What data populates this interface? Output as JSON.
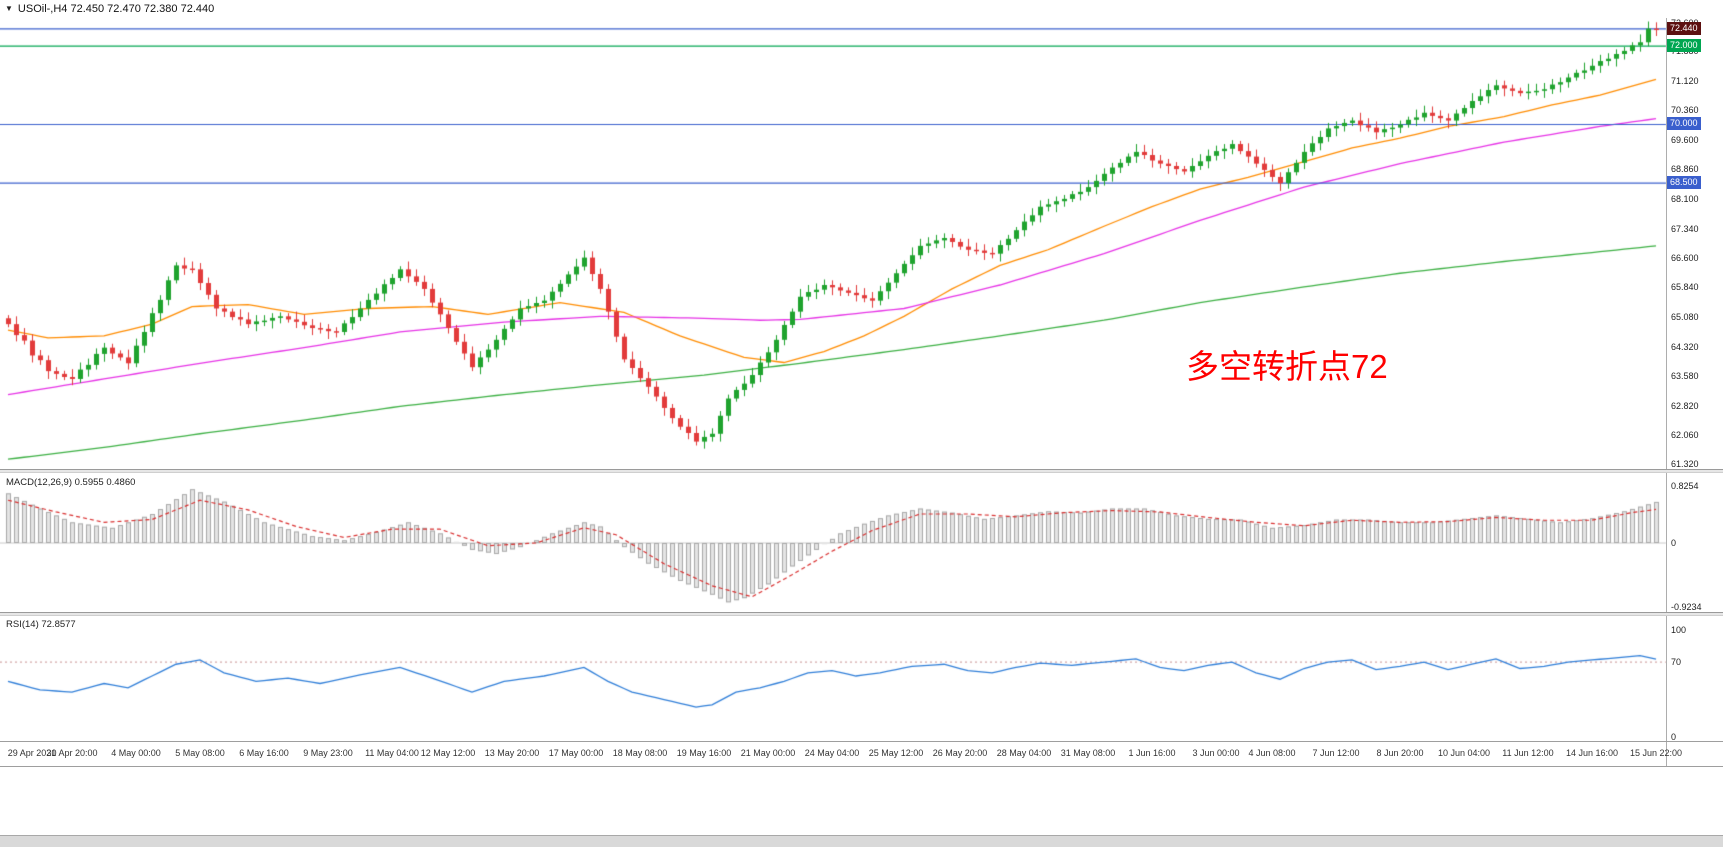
{
  "header": {
    "dropdown_icon": "▼",
    "title": "USOil-,H4  72.450 72.470 72.380 72.440"
  },
  "annotation": {
    "text": "多空转折点72",
    "color": "#ff0000"
  },
  "price_axis": {
    "labels": [
      "72.600",
      "71.880",
      "71.120",
      "70.360",
      "69.600",
      "68.860",
      "68.100",
      "67.340",
      "66.600",
      "65.840",
      "65.080",
      "64.320",
      "63.580",
      "62.820",
      "62.060",
      "61.320"
    ],
    "tags": [
      {
        "text": "72.440",
        "price": 72.44,
        "bg": "#5c1010"
      },
      {
        "text": "72.000",
        "price": 72.0,
        "bg": "#00a651"
      },
      {
        "text": "70.000",
        "price": 70.0,
        "bg": "#3a5fcd"
      },
      {
        "text": "68.500",
        "price": 68.5,
        "bg": "#3a5fcd"
      }
    ]
  },
  "hlines": [
    {
      "price": 72.44,
      "color": "#3a5fcd"
    },
    {
      "price": 72.0,
      "color": "#00a651"
    },
    {
      "price": 70.0,
      "color": "#3a5fcd"
    },
    {
      "price": 68.5,
      "color": "#3a5fcd"
    }
  ],
  "time_axis": [
    "29 Apr 2021",
    "30 Apr 20:00",
    "4 May 00:00",
    "5 May 08:00",
    "6 May 16:00",
    "9 May 23:00",
    "11 May 04:00",
    "12 May 12:00",
    "13 May 20:00",
    "17 May 00:00",
    "18 May 08:00",
    "19 May 16:00",
    "21 May 00:00",
    "24 May 04:00",
    "25 May 12:00",
    "26 May 20:00",
    "28 May 04:00",
    "31 May 08:00",
    "1 Jun 16:00",
    "3 Jun 00:00",
    "4 Jun 08:00",
    "7 Jun 12:00",
    "8 Jun 20:00",
    "10 Jun 04:00",
    "11 Jun 12:00",
    "14 Jun 16:00",
    "15 Jun 22:00"
  ],
  "chart_data": [
    {
      "type": "candlestick",
      "symbol": "USOil-",
      "timeframe": "H4",
      "y_range": [
        61.2,
        72.72
      ],
      "x_range": [
        "29 Apr 2021",
        "15 Jun 2021 22:00"
      ],
      "up_color": "#1fa32e",
      "down_color": "#e23b3b",
      "first_open": 65.05,
      "closes": [
        64.9,
        64.62,
        64.48,
        64.1,
        63.98,
        63.7,
        63.63,
        63.55,
        63.5,
        63.74,
        63.86,
        64.14,
        64.3,
        64.15,
        64.05,
        63.9,
        64.35,
        64.7,
        65.18,
        65.52,
        66.02,
        66.4,
        66.32,
        66.3,
        65.95,
        65.65,
        65.3,
        65.22,
        65.08,
        65.02,
        64.9,
        64.97,
        64.99,
        65.06,
        65.1,
        65.02,
        64.96,
        64.87,
        64.8,
        64.78,
        64.72,
        64.7,
        64.92,
        65.08,
        65.3,
        65.52,
        65.68,
        65.92,
        66.08,
        66.3,
        66.12,
        65.98,
        65.8,
        65.45,
        65.15,
        64.8,
        64.45,
        64.15,
        63.8,
        64.05,
        64.25,
        64.5,
        64.78,
        65.02,
        65.3,
        65.36,
        65.44,
        65.5,
        65.73,
        65.93,
        66.17,
        66.37,
        66.6,
        66.18,
        65.8,
        65.22,
        64.58,
        64.0,
        63.78,
        63.52,
        63.3,
        63.05,
        62.76,
        62.5,
        62.28,
        62.12,
        61.9,
        62.02,
        62.1,
        62.56,
        63.0,
        63.22,
        63.38,
        63.6,
        63.92,
        64.18,
        64.5,
        64.88,
        65.22,
        65.6,
        65.72,
        65.78,
        65.9,
        65.84,
        65.76,
        65.7,
        65.64,
        65.56,
        65.5,
        65.74,
        65.96,
        66.2,
        66.44,
        66.66,
        66.9,
        66.96,
        67.04,
        67.1,
        67.0,
        66.88,
        66.8,
        66.78,
        66.72,
        66.7,
        66.92,
        67.08,
        67.3,
        67.52,
        67.68,
        67.9,
        67.96,
        68.04,
        68.1,
        68.22,
        68.28,
        68.4,
        68.56,
        68.74,
        68.9,
        69.02,
        69.18,
        69.3,
        69.22,
        69.08,
        69.0,
        68.94,
        68.86,
        68.8,
        68.94,
        69.06,
        69.2,
        69.32,
        69.38,
        69.5,
        69.32,
        69.18,
        69.0,
        68.84,
        68.66,
        68.5,
        68.78,
        69.02,
        69.3,
        69.52,
        69.68,
        69.9,
        69.96,
        70.04,
        70.1,
        69.98,
        69.92,
        69.8,
        69.88,
        69.92,
        70.0,
        70.12,
        70.18,
        70.3,
        70.22,
        70.16,
        70.1,
        70.28,
        70.42,
        70.6,
        70.72,
        70.88,
        71.0,
        70.92,
        70.86,
        70.8,
        70.84,
        70.86,
        70.9,
        71.02,
        71.08,
        71.2,
        71.32,
        71.38,
        71.5,
        71.62,
        71.68,
        71.8,
        71.88,
        72.02,
        72.1,
        72.45,
        72.44
      ],
      "overlays": [
        {
          "name": "ma-fast-orange",
          "color": "#ff8c00",
          "points": [
            [
              0,
              64.75
            ],
            [
              5,
              64.55
            ],
            [
              12,
              64.6
            ],
            [
              18,
              64.9
            ],
            [
              23,
              65.35
            ],
            [
              30,
              65.4
            ],
            [
              37,
              65.15
            ],
            [
              45,
              65.3
            ],
            [
              53,
              65.35
            ],
            [
              60,
              65.15
            ],
            [
              69,
              65.45
            ],
            [
              77,
              65.2
            ],
            [
              84,
              64.6
            ],
            [
              92,
              64.05
            ],
            [
              97,
              63.92
            ],
            [
              102,
              64.2
            ],
            [
              107,
              64.6
            ],
            [
              112,
              65.1
            ],
            [
              118,
              65.8
            ],
            [
              124,
              66.4
            ],
            [
              130,
              66.8
            ],
            [
              137,
              67.4
            ],
            [
              143,
              67.9
            ],
            [
              149,
              68.35
            ],
            [
              155,
              68.65
            ],
            [
              162,
              69.05
            ],
            [
              168,
              69.4
            ],
            [
              174,
              69.65
            ],
            [
              180,
              69.95
            ],
            [
              187,
              70.2
            ],
            [
              193,
              70.5
            ],
            [
              199,
              70.75
            ],
            [
              206,
              71.15
            ]
          ]
        },
        {
          "name": "ma-mid-magenta",
          "color": "#e632e6",
          "points": [
            [
              0,
              63.1
            ],
            [
              12,
              63.5
            ],
            [
              24,
              63.9
            ],
            [
              37,
              64.3
            ],
            [
              49,
              64.7
            ],
            [
              62,
              64.95
            ],
            [
              74,
              65.1
            ],
            [
              87,
              65.05
            ],
            [
              94,
              65.0
            ],
            [
              99,
              65.02
            ],
            [
              112,
              65.3
            ],
            [
              124,
              65.9
            ],
            [
              137,
              66.7
            ],
            [
              149,
              67.55
            ],
            [
              162,
              68.4
            ],
            [
              174,
              69.0
            ],
            [
              187,
              69.55
            ],
            [
              199,
              69.95
            ],
            [
              206,
              70.15
            ]
          ]
        },
        {
          "name": "ma-slow-green",
          "color": "#3cb043",
          "points": [
            [
              0,
              61.45
            ],
            [
              12,
              61.75
            ],
            [
              24,
              62.1
            ],
            [
              37,
              62.45
            ],
            [
              49,
              62.8
            ],
            [
              62,
              63.1
            ],
            [
              74,
              63.35
            ],
            [
              87,
              63.6
            ],
            [
              99,
              63.9
            ],
            [
              112,
              64.25
            ],
            [
              124,
              64.6
            ],
            [
              137,
              65.0
            ],
            [
              149,
              65.45
            ],
            [
              162,
              65.85
            ],
            [
              174,
              66.2
            ],
            [
              187,
              66.5
            ],
            [
              199,
              66.75
            ],
            [
              206,
              66.9
            ]
          ]
        }
      ]
    },
    {
      "type": "macd",
      "label": "MACD(12,26,9) 0.5955 0.4860",
      "axis": [
        {
          "text": "0.8254",
          "value": 0.8254
        },
        {
          "text": "0",
          "value": 0
        },
        {
          "text": "-0.9234",
          "value": -0.9234
        }
      ],
      "histogram_fill": "#e4e4e4",
      "histogram_stroke": "#a9a9a9",
      "signal_color": "#d93030",
      "zero_line_color": "#c8c8c8",
      "histogram_points": [
        [
          0,
          0.72
        ],
        [
          4,
          0.5
        ],
        [
          8,
          0.3
        ],
        [
          13,
          0.22
        ],
        [
          18,
          0.42
        ],
        [
          23,
          0.78
        ],
        [
          27,
          0.6
        ],
        [
          32,
          0.3
        ],
        [
          38,
          0.1
        ],
        [
          42,
          0.04
        ],
        [
          46,
          0.16
        ],
        [
          50,
          0.3
        ],
        [
          54,
          0.14
        ],
        [
          58,
          -0.1
        ],
        [
          61,
          -0.16
        ],
        [
          64,
          -0.06
        ],
        [
          68,
          0.14
        ],
        [
          72,
          0.3
        ],
        [
          74,
          0.24
        ],
        [
          77,
          -0.06
        ],
        [
          80,
          -0.3
        ],
        [
          84,
          -0.55
        ],
        [
          88,
          -0.75
        ],
        [
          90,
          -0.86
        ],
        [
          92,
          -0.8
        ],
        [
          95,
          -0.6
        ],
        [
          98,
          -0.34
        ],
        [
          101,
          -0.1
        ],
        [
          104,
          0.14
        ],
        [
          107,
          0.28
        ],
        [
          110,
          0.4
        ],
        [
          114,
          0.5
        ],
        [
          118,
          0.44
        ],
        [
          122,
          0.35
        ],
        [
          126,
          0.4
        ],
        [
          130,
          0.46
        ],
        [
          134,
          0.44
        ],
        [
          138,
          0.5
        ],
        [
          142,
          0.5
        ],
        [
          146,
          0.4
        ],
        [
          150,
          0.35
        ],
        [
          154,
          0.34
        ],
        [
          158,
          0.22
        ],
        [
          162,
          0.26
        ],
        [
          166,
          0.34
        ],
        [
          170,
          0.34
        ],
        [
          174,
          0.3
        ],
        [
          178,
          0.3
        ],
        [
          182,
          0.35
        ],
        [
          186,
          0.4
        ],
        [
          190,
          0.35
        ],
        [
          194,
          0.3
        ],
        [
          198,
          0.36
        ],
        [
          202,
          0.46
        ],
        [
          206,
          0.5955
        ]
      ],
      "signal_points": [
        [
          0,
          0.62
        ],
        [
          6,
          0.45
        ],
        [
          12,
          0.3
        ],
        [
          18,
          0.34
        ],
        [
          24,
          0.62
        ],
        [
          30,
          0.48
        ],
        [
          36,
          0.24
        ],
        [
          42,
          0.08
        ],
        [
          48,
          0.2
        ],
        [
          54,
          0.2
        ],
        [
          60,
          -0.04
        ],
        [
          66,
          0.0
        ],
        [
          72,
          0.22
        ],
        [
          76,
          0.12
        ],
        [
          82,
          -0.3
        ],
        [
          88,
          -0.62
        ],
        [
          93,
          -0.78
        ],
        [
          98,
          -0.46
        ],
        [
          103,
          -0.12
        ],
        [
          108,
          0.18
        ],
        [
          114,
          0.42
        ],
        [
          120,
          0.42
        ],
        [
          126,
          0.38
        ],
        [
          132,
          0.44
        ],
        [
          138,
          0.47
        ],
        [
          144,
          0.45
        ],
        [
          150,
          0.37
        ],
        [
          156,
          0.3
        ],
        [
          162,
          0.25
        ],
        [
          168,
          0.33
        ],
        [
          174,
          0.3
        ],
        [
          180,
          0.31
        ],
        [
          186,
          0.37
        ],
        [
          192,
          0.33
        ],
        [
          198,
          0.33
        ],
        [
          203,
          0.44
        ],
        [
          206,
          0.486
        ]
      ]
    },
    {
      "type": "rsi",
      "label": "RSI(14) 72.8577",
      "axis": [
        {
          "text": "100",
          "value": 100
        },
        {
          "text": "70",
          "value": 70
        },
        {
          "text": "0",
          "value": 0
        }
      ],
      "levels": [
        70
      ],
      "level_color": "#c89090",
      "line_color": "#2f7ed8",
      "points": [
        [
          0,
          52
        ],
        [
          4,
          44
        ],
        [
          8,
          42
        ],
        [
          12,
          50
        ],
        [
          15,
          46
        ],
        [
          21,
          68
        ],
        [
          24,
          72
        ],
        [
          27,
          60
        ],
        [
          31,
          52
        ],
        [
          35,
          55
        ],
        [
          39,
          50
        ],
        [
          44,
          58
        ],
        [
          49,
          65
        ],
        [
          53,
          55
        ],
        [
          58,
          42
        ],
        [
          62,
          52
        ],
        [
          67,
          57
        ],
        [
          72,
          65
        ],
        [
          75,
          52
        ],
        [
          78,
          42
        ],
        [
          82,
          35
        ],
        [
          86,
          28
        ],
        [
          88,
          30
        ],
        [
          91,
          42
        ],
        [
          94,
          46
        ],
        [
          97,
          52
        ],
        [
          100,
          60
        ],
        [
          103,
          62
        ],
        [
          106,
          57
        ],
        [
          109,
          60
        ],
        [
          113,
          66
        ],
        [
          117,
          68
        ],
        [
          120,
          62
        ],
        [
          123,
          60
        ],
        [
          126,
          65
        ],
        [
          129,
          69
        ],
        [
          133,
          67
        ],
        [
          137,
          70
        ],
        [
          141,
          73
        ],
        [
          144,
          65
        ],
        [
          147,
          62
        ],
        [
          150,
          67
        ],
        [
          153,
          70
        ],
        [
          156,
          60
        ],
        [
          159,
          54
        ],
        [
          162,
          64
        ],
        [
          165,
          70
        ],
        [
          168,
          72
        ],
        [
          171,
          63
        ],
        [
          174,
          66
        ],
        [
          177,
          70
        ],
        [
          180,
          63
        ],
        [
          183,
          68
        ],
        [
          186,
          73
        ],
        [
          189,
          64
        ],
        [
          192,
          66
        ],
        [
          195,
          70
        ],
        [
          198,
          72
        ],
        [
          201,
          74
        ],
        [
          204,
          76
        ],
        [
          206,
          72.86
        ]
      ]
    }
  ]
}
